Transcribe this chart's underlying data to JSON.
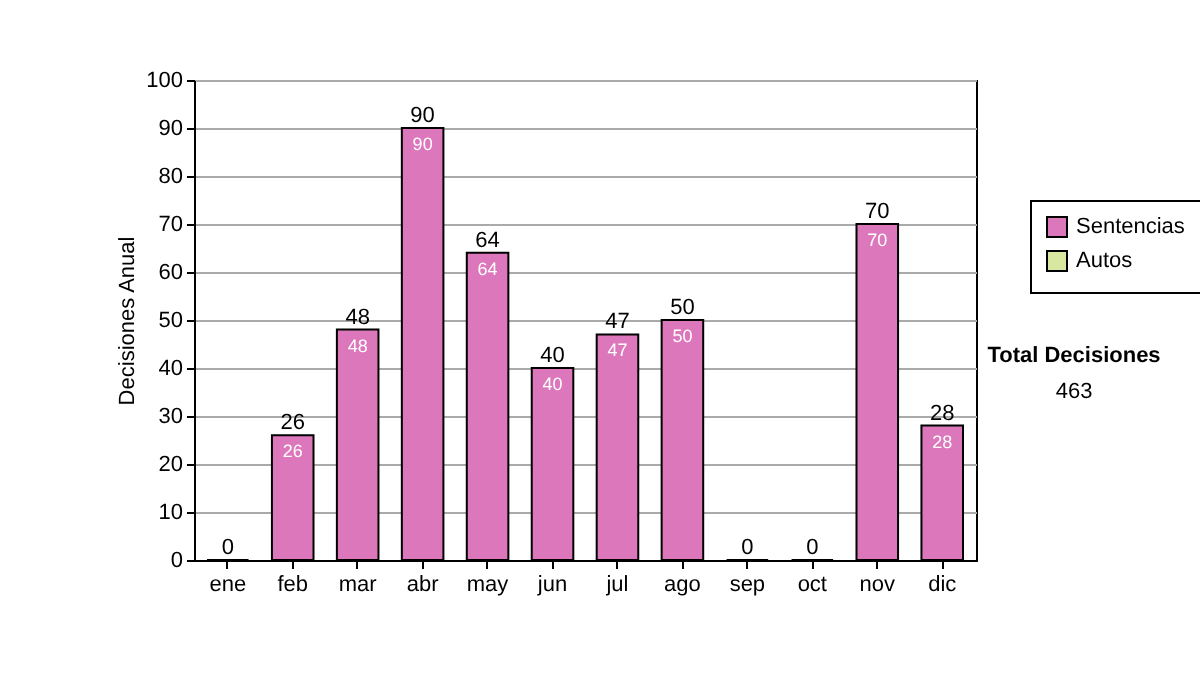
{
  "chart_data": {
    "type": "bar",
    "stacked": true,
    "ylabel": "Decisiones Anual",
    "categories": [
      "ene",
      "feb",
      "mar",
      "abr",
      "may",
      "jun",
      "jul",
      "ago",
      "sep",
      "oct",
      "nov",
      "dic"
    ],
    "series": [
      {
        "name": "Sentencias",
        "color": "#dd77bb",
        "values": [
          0,
          26,
          48,
          90,
          64,
          40,
          47,
          50,
          0,
          0,
          70,
          28
        ],
        "value_labels": [
          null,
          "26",
          "48",
          "90",
          "64",
          "40",
          "47",
          "50",
          null,
          null,
          "70",
          "28"
        ]
      },
      {
        "name": "Autos",
        "color": "#d8e8a0",
        "values": [
          null,
          null,
          null,
          null,
          null,
          null,
          null,
          null,
          null,
          null,
          null,
          null
        ]
      }
    ],
    "totals": [
      "0",
      "26",
      "48",
      "90",
      "64",
      "40",
      "47",
      "50",
      "0",
      "0",
      "70",
      "28"
    ],
    "ylim": [
      0,
      100
    ],
    "yticks": [
      0,
      10,
      20,
      30,
      40,
      50,
      60,
      70,
      80,
      90,
      100
    ],
    "grid": "y",
    "legend": "right",
    "annotations": [
      "Total Decisiones",
      "463"
    ]
  }
}
